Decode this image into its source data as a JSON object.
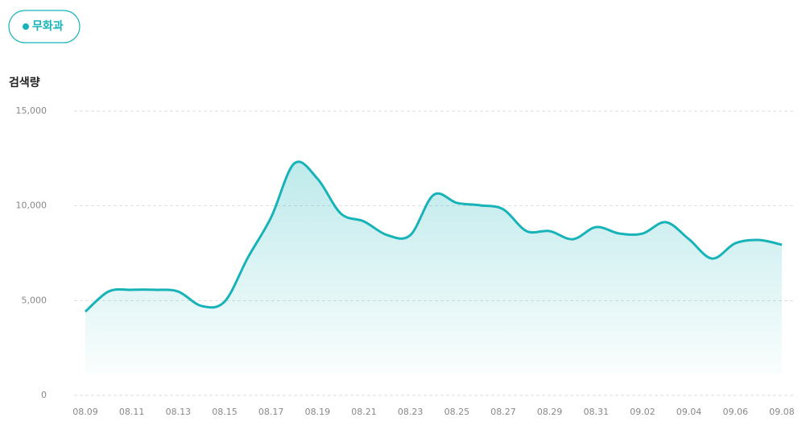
{
  "chart_data": {
    "type": "area",
    "y_label": "검색량",
    "series": [
      {
        "name": "무화과",
        "color": "#17b3b8",
        "values": [
          4420,
          5480,
          5570,
          5570,
          5480,
          4720,
          4950,
          7270,
          9390,
          12240,
          11430,
          9600,
          9180,
          8460,
          8460,
          10580,
          10160,
          10030,
          9820,
          8670,
          8670,
          8240,
          8880,
          8540,
          8540,
          9140,
          8240,
          7220,
          8030,
          8200,
          7950
        ]
      }
    ],
    "categories": [
      "08.09",
      null,
      "08.11",
      null,
      "08.13",
      null,
      "08.15",
      null,
      "08.17",
      null,
      "08.19",
      null,
      "08.21",
      null,
      "08.23",
      null,
      "08.25",
      null,
      "08.27",
      null,
      "08.29",
      null,
      "08.31",
      null,
      "09.02",
      null,
      "09.04",
      null,
      "09.06",
      null,
      "09.08"
    ],
    "ylim": [
      0,
      15000
    ],
    "yticks": [
      0,
      {
        "value": 5000,
        "label": "5,000"
      },
      {
        "value": 10000,
        "label": "10,000"
      },
      {
        "value": 15000,
        "label": "15,000"
      }
    ],
    "grid": true
  }
}
